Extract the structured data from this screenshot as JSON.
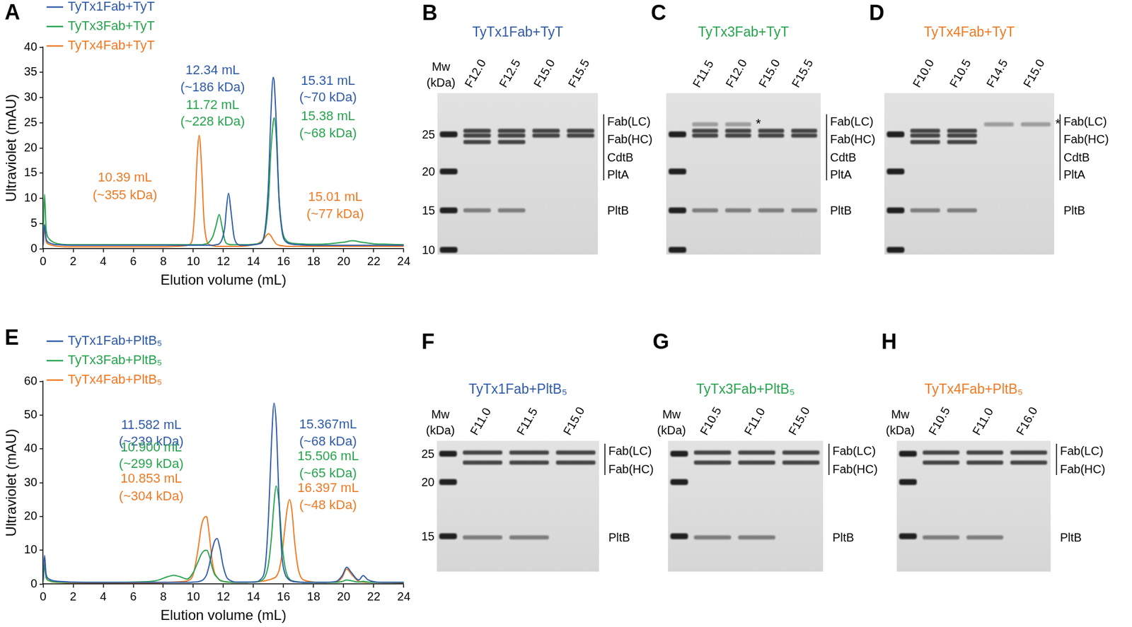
{
  "chart_data": [
    {
      "type": "line",
      "panel": "A",
      "x_label": "Elution volume (mL)",
      "y_label": "Ultraviolet (mAU)",
      "x": [
        0,
        0.1,
        0.2,
        0.4,
        0.7,
        1,
        2,
        4,
        6,
        8,
        9,
        9.6,
        9.9,
        10.1,
        10.25,
        10.39,
        10.55,
        10.7,
        10.9,
        11.1,
        11.3,
        11.5,
        11.72,
        11.9,
        12.1,
        12.2,
        12.34,
        12.5,
        12.7,
        12.9,
        13.2,
        13.6,
        14,
        14.4,
        14.7,
        14.9,
        15.01,
        15.15,
        15.31,
        15.38,
        15.5,
        15.7,
        15.9,
        16.2,
        16.6,
        17,
        18,
        19,
        20,
        20.6,
        21.2,
        22,
        23,
        24
      ],
      "xlim": [
        0,
        24
      ],
      "xticks": [
        0,
        2,
        4,
        6,
        8,
        10,
        12,
        14,
        16,
        18,
        20,
        22,
        24
      ],
      "ylim": [
        0,
        40
      ],
      "yticks": [
        0,
        5,
        10,
        15,
        20,
        25,
        30,
        35,
        40
      ],
      "grid": false,
      "legend": "upper left",
      "series": [
        {
          "name": "TyTx1Fab+TyT",
          "color": "#2e5aa8",
          "values": [
            0.6,
            4.8,
            2.0,
            1.2,
            0.9,
            0.8,
            0.7,
            0.7,
            0.7,
            0.7,
            0.7,
            0.7,
            0.7,
            0.7,
            0.7,
            0.7,
            0.7,
            0.7,
            0.7,
            0.7,
            0.7,
            0.8,
            1.0,
            1.8,
            4.5,
            8.0,
            11.0,
            7.5,
            2.5,
            1.0,
            0.7,
            0.7,
            0.8,
            1.0,
            2.5,
            8.0,
            14.0,
            26.0,
            34.0,
            33.0,
            26.0,
            10.0,
            3.5,
            1.3,
            0.9,
            0.8,
            0.7,
            0.7,
            0.7,
            0.7,
            0.7,
            0.7,
            0.7,
            0.7
          ],
          "annotations": [
            [
              "12.34 mL",
              "(~186 kDa)"
            ],
            [
              "15.31 mL",
              "(~70 kDa)"
            ]
          ]
        },
        {
          "name": "TyTx3Fab+TyT",
          "color": "#27a34e",
          "values": [
            0.8,
            10.8,
            4.0,
            2.0,
            1.3,
            1.0,
            0.8,
            0.8,
            0.8,
            0.8,
            0.8,
            0.8,
            0.8,
            0.8,
            0.8,
            0.8,
            0.8,
            0.9,
            1.0,
            1.5,
            2.5,
            4.5,
            6.8,
            4.5,
            1.6,
            1.1,
            0.9,
            0.8,
            0.8,
            0.8,
            0.8,
            0.8,
            0.9,
            1.1,
            2.2,
            6.0,
            10.0,
            19.0,
            25.0,
            26.0,
            23.0,
            10.0,
            4.0,
            1.6,
            1.1,
            1.0,
            0.9,
            1.0,
            1.3,
            1.6,
            1.3,
            1.0,
            0.9,
            0.8
          ],
          "annotations": [
            [
              "11.72 mL",
              "(~228 kDa)"
            ],
            [
              "15.38 mL",
              "(~68 kDa)"
            ]
          ]
        },
        {
          "name": "TyTx4Fab+TyT",
          "color": "#ef7a24",
          "values": [
            0.5,
            4.0,
            1.5,
            0.9,
            0.6,
            0.5,
            0.4,
            0.4,
            0.4,
            0.4,
            0.5,
            0.7,
            1.5,
            8.0,
            18.0,
            22.5,
            16.0,
            6.0,
            1.5,
            0.8,
            0.6,
            0.5,
            0.5,
            0.5,
            0.5,
            0.5,
            0.5,
            0.5,
            0.5,
            0.5,
            0.5,
            0.6,
            0.8,
            1.2,
            2.0,
            2.8,
            3.0,
            2.6,
            1.8,
            1.5,
            1.0,
            0.7,
            0.6,
            0.5,
            0.5,
            0.5,
            0.5,
            0.5,
            0.5,
            0.5,
            0.5,
            0.5,
            0.5,
            0.5
          ],
          "annotations": [
            [
              "10.39 mL",
              "(~355 kDa)"
            ],
            [
              "15.01 mL",
              "(~77 kDa)"
            ]
          ]
        }
      ]
    },
    {
      "type": "line",
      "panel": "E",
      "x_label": "Elution volume (mL)",
      "y_label": "Ultraviolet (mAU)",
      "x": [
        0,
        0.1,
        0.2,
        0.4,
        0.7,
        1,
        2,
        4,
        6,
        7.5,
        8.3,
        8.7,
        9.1,
        9.6,
        10,
        10.3,
        10.55,
        10.7,
        10.853,
        10.9,
        11.05,
        11.25,
        11.4,
        11.582,
        11.75,
        12,
        12.3,
        13,
        14,
        14.5,
        14.8,
        15.0,
        15.2,
        15.367,
        15.506,
        15.7,
        15.9,
        16.1,
        16.25,
        16.397,
        16.55,
        16.75,
        17,
        17.5,
        18.5,
        19.5,
        19.9,
        20.2,
        20.5,
        21,
        21.3,
        21.6,
        22.5,
        24
      ],
      "xlim": [
        0,
        24
      ],
      "xticks": [
        0,
        2,
        4,
        6,
        8,
        10,
        12,
        14,
        16,
        18,
        20,
        22,
        24
      ],
      "ylim": [
        0,
        60
      ],
      "yticks": [
        0,
        10,
        20,
        30,
        40,
        50,
        60
      ],
      "grid": false,
      "legend": "upper left",
      "series": [
        {
          "name": "TyTx1Fab+PltB₅",
          "color": "#2e5aa8",
          "values": [
            1.0,
            8.5,
            3.0,
            1.5,
            1.0,
            0.8,
            0.6,
            0.5,
            0.5,
            0.5,
            0.5,
            0.5,
            0.5,
            0.5,
            0.6,
            0.7,
            1.0,
            1.5,
            2.5,
            3.0,
            5.5,
            10.0,
            12.5,
            13.5,
            11.0,
            5.0,
            1.5,
            0.6,
            0.6,
            1.5,
            6.0,
            20.0,
            42.0,
            53.5,
            48.0,
            25.0,
            8.0,
            3.0,
            1.8,
            1.2,
            0.9,
            0.7,
            0.6,
            0.5,
            0.5,
            0.8,
            2.5,
            5.0,
            3.5,
            1.2,
            2.5,
            1.3,
            0.5,
            0.5
          ],
          "annotations": [
            [
              "11.582 mL",
              "(~239 kDa)"
            ],
            [
              "15.367mL",
              "(~68 kDa)"
            ]
          ]
        },
        {
          "name": "TyTx3Fab+PltB₅",
          "color": "#27a34e",
          "values": [
            0.6,
            5.5,
            2.0,
            1.0,
            0.7,
            0.6,
            0.5,
            0.5,
            0.6,
            1.0,
            2.2,
            2.6,
            2.2,
            1.5,
            3.5,
            6.5,
            9.0,
            9.8,
            10.0,
            10.0,
            8.5,
            5.0,
            3.0,
            2.0,
            1.2,
            0.8,
            0.6,
            0.5,
            0.6,
            1.0,
            2.5,
            6.0,
            14.0,
            24.0,
            29.0,
            24.0,
            12.0,
            5.0,
            2.5,
            1.5,
            1.0,
            0.8,
            0.6,
            0.5,
            0.5,
            0.5,
            0.8,
            1.2,
            1.0,
            0.6,
            0.8,
            0.6,
            0.5,
            0.5
          ],
          "annotations": [
            [
              "10.900 mL",
              "(~299 kDa)"
            ],
            [
              "15.506 mL",
              "(~65 kDa)"
            ]
          ]
        },
        {
          "name": "TyTx4Fab+PltB₅",
          "color": "#ef7a24",
          "values": [
            0.6,
            6.0,
            2.0,
            1.0,
            0.6,
            0.5,
            0.4,
            0.4,
            0.4,
            0.4,
            0.5,
            0.6,
            0.7,
            1.0,
            3.0,
            10.0,
            17.5,
            19.5,
            20.0,
            19.8,
            15.0,
            7.0,
            3.5,
            2.0,
            1.2,
            0.8,
            0.6,
            0.5,
            0.6,
            0.8,
            1.0,
            1.2,
            1.5,
            1.8,
            2.2,
            4.0,
            9.0,
            17.0,
            22.5,
            25.0,
            22.0,
            12.0,
            4.0,
            1.0,
            0.5,
            0.6,
            2.0,
            4.5,
            3.0,
            0.8,
            0.6,
            0.5,
            0.5,
            0.4
          ],
          "annotations": [
            [
              "10.853 mL",
              "(~304 kDa)"
            ],
            [
              "16.397 mL",
              "(~48 kDa)"
            ]
          ]
        }
      ]
    }
  ],
  "gels": [
    {
      "panel": "B",
      "title": "TyTx1Fab+TyT",
      "color": "#2e5aa8",
      "mw_label": [
        "Mw",
        "(kDa)"
      ],
      "ladder": [
        25,
        20,
        15,
        10
      ],
      "band_labels": [
        "Fab(LC)",
        "Fab(HC)",
        "CdtB",
        "PltA",
        "PltB"
      ],
      "lanes": [
        {
          "label": "F12.0",
          "bands": [
            "Fab(LC)",
            "Fab(HC)",
            "CdtB",
            "PltB"
          ]
        },
        {
          "label": "F12.5",
          "bands": [
            "Fab(LC)",
            "Fab(HC)",
            "CdtB",
            "PltB"
          ]
        },
        {
          "label": "F15.0",
          "bands": [
            "Fab(LC)",
            "Fab(HC)"
          ]
        },
        {
          "label": "F15.5",
          "bands": [
            "Fab(LC)",
            "Fab(HC)"
          ]
        }
      ]
    },
    {
      "panel": "C",
      "title": "TyTx3Fab+TyT",
      "color": "#27a34e",
      "mark": "*",
      "band_labels": [
        "Fab(LC)",
        "Fab(HC)",
        "CdtB",
        "PltA",
        "PltB"
      ],
      "lanes": [
        {
          "label": "F11.5",
          "bands": [
            "*",
            "Fab(LC)",
            "Fab(HC)",
            "PltB"
          ]
        },
        {
          "label": "F12.0",
          "bands": [
            "*",
            "Fab(LC)",
            "Fab(HC)",
            "PltB"
          ]
        },
        {
          "label": "F15.0",
          "bands": [
            "Fab(LC)",
            "Fab(HC)",
            "PltB"
          ]
        },
        {
          "label": "F15.5",
          "bands": [
            "Fab(LC)",
            "Fab(HC)",
            "PltB"
          ]
        }
      ]
    },
    {
      "panel": "D",
      "title": "TyTx4Fab+TyT",
      "color": "#ef7a24",
      "mark": "*",
      "band_labels": [
        "Fab(LC)",
        "Fab(HC)",
        "CdtB",
        "PltA",
        "PltB"
      ],
      "lanes": [
        {
          "label": "F10.0",
          "bands": [
            "Fab(LC)",
            "Fab(HC)",
            "CdtB",
            "PltB"
          ]
        },
        {
          "label": "F10.5",
          "bands": [
            "Fab(LC)",
            "Fab(HC)",
            "CdtB",
            "PltB"
          ]
        },
        {
          "label": "F14.5",
          "bands": [
            "*"
          ]
        },
        {
          "label": "F15.0",
          "bands": [
            "*"
          ]
        }
      ]
    },
    {
      "panel": "F",
      "title": "TyTx1Fab+PltB₅",
      "color": "#2e5aa8",
      "mw_label": [
        "Mw",
        "(kDa)"
      ],
      "ladder": [
        25,
        20,
        15
      ],
      "band_labels": [
        "Fab(LC)",
        "Fab(HC)",
        "PltB"
      ],
      "lanes": [
        {
          "label": "F11.0",
          "bands": [
            "Fab(LC)",
            "Fab(HC)",
            "PltB"
          ]
        },
        {
          "label": "F11.5",
          "bands": [
            "Fab(LC)",
            "Fab(HC)",
            "PltB"
          ]
        },
        {
          "label": "F15.0",
          "bands": [
            "Fab(LC)",
            "Fab(HC)"
          ]
        }
      ]
    },
    {
      "panel": "G",
      "title": "TyTx3Fab+PltB₅",
      "color": "#27a34e",
      "mw_label": [
        "Mw",
        "(kDa)"
      ],
      "band_labels": [
        "Fab(LC)",
        "Fab(HC)",
        "PltB"
      ],
      "lanes": [
        {
          "label": "F10.5",
          "bands": [
            "Fab(LC)",
            "Fab(HC)",
            "PltB"
          ]
        },
        {
          "label": "F11.0",
          "bands": [
            "Fab(LC)",
            "Fab(HC)",
            "PltB"
          ]
        },
        {
          "label": "F15.0",
          "bands": [
            "Fab(LC)",
            "Fab(HC)"
          ]
        }
      ]
    },
    {
      "panel": "H",
      "title": "TyTx4Fab+PltB₅",
      "color": "#ef7a24",
      "mw_label": [
        "Mw",
        "(kDa)"
      ],
      "band_labels": [
        "Fab(LC)",
        "Fab(HC)",
        "PltB"
      ],
      "lanes": [
        {
          "label": "F10.5",
          "bands": [
            "Fab(LC)",
            "Fab(HC)",
            "PltB"
          ]
        },
        {
          "label": "F11.0",
          "bands": [
            "Fab(LC)",
            "Fab(HC)",
            "PltB"
          ]
        },
        {
          "label": "F16.0",
          "bands": [
            "Fab(LC)",
            "Fab(HC)"
          ]
        }
      ]
    }
  ]
}
